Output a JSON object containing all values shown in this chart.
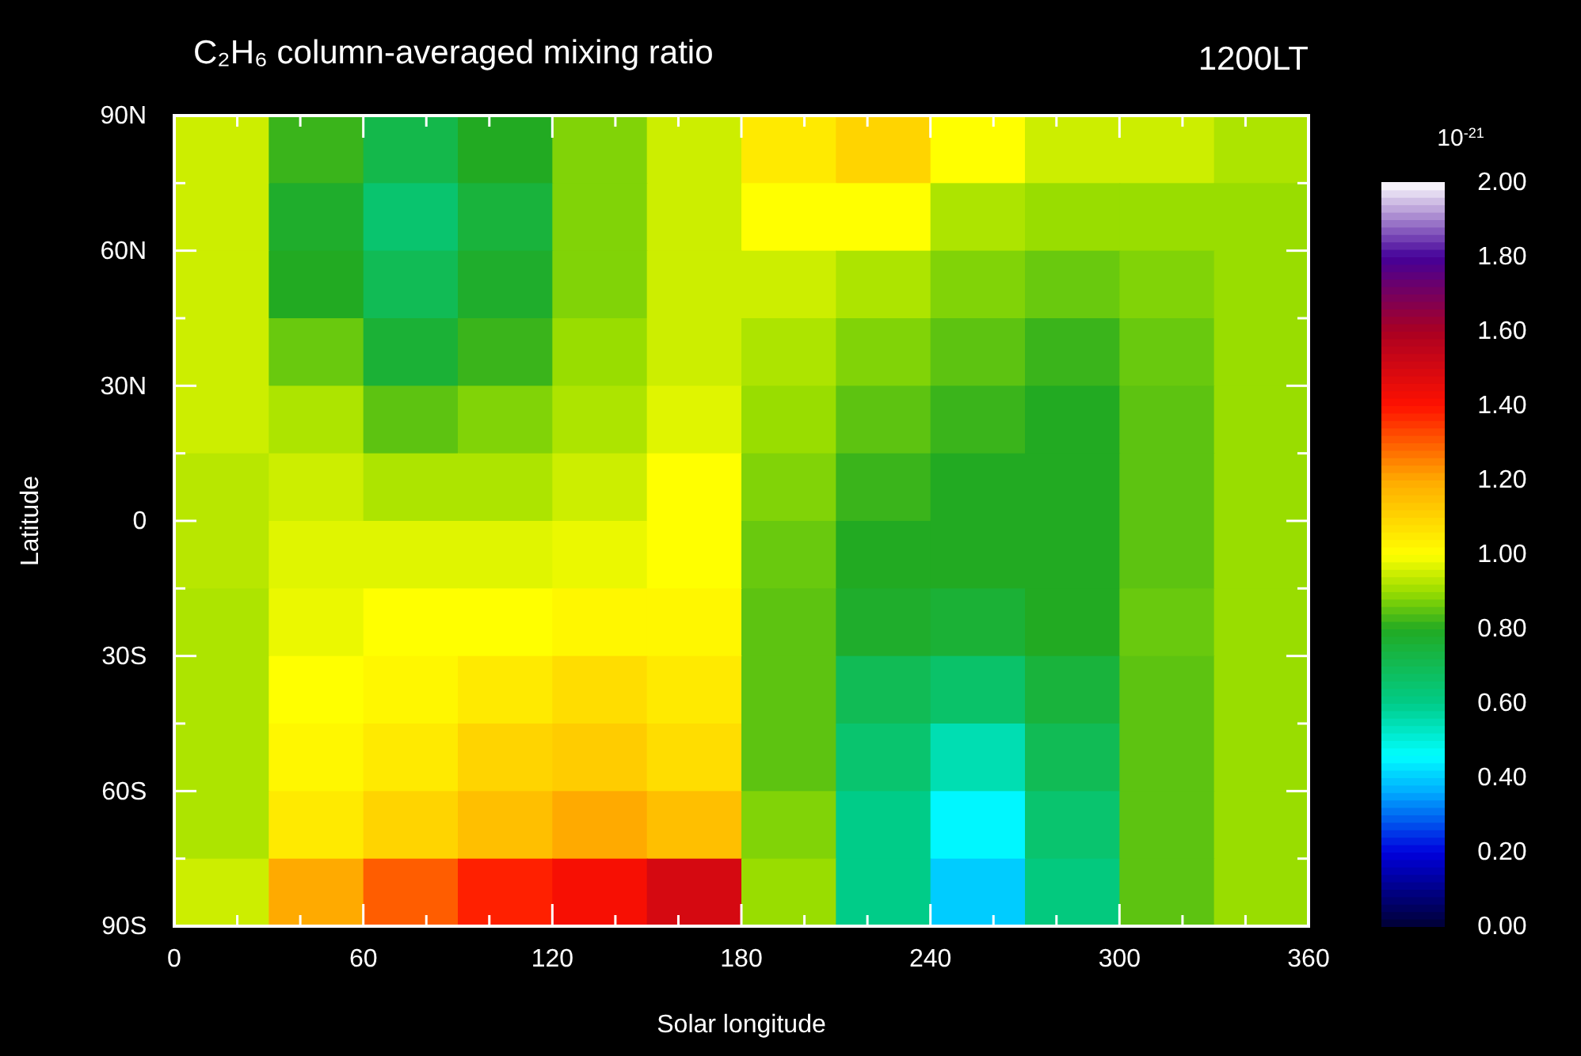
{
  "chart_data": {
    "type": "heatmap",
    "title": "C₂H₆ column-averaged mixing ratio",
    "subtitle": "1200LT",
    "xlabel": "Solar longitude",
    "ylabel": "Latitude",
    "clabel": "10$^{-21}$",
    "xlim": [
      0,
      360
    ],
    "ylim": [
      -90,
      90
    ],
    "xticks": [
      0,
      {
        "value": 20,
        "label": null
      },
      {
        "value": 40,
        "label": null
      },
      60,
      {
        "value": 80,
        "label": null
      },
      {
        "value": 100,
        "label": null
      },
      120,
      {
        "value": 140,
        "label": null
      },
      {
        "value": 160,
        "label": null
      },
      180,
      {
        "value": 200,
        "label": null
      },
      {
        "value": 220,
        "label": null
      },
      240,
      {
        "value": 260,
        "label": null
      },
      {
        "value": 280,
        "label": null
      },
      300,
      {
        "value": 320,
        "label": null
      },
      {
        "value": 340,
        "label": null
      },
      360
    ],
    "yticks": [
      {
        "value": -90,
        "label": "90S"
      },
      {
        "value": -75,
        "label": null
      },
      {
        "value": -60,
        "label": "60S"
      },
      {
        "value": -45,
        "label": null
      },
      {
        "value": -30,
        "label": "30S"
      },
      {
        "value": -15,
        "label": null
      },
      {
        "value": 0,
        "label": "0"
      },
      {
        "value": 15,
        "label": null
      },
      {
        "value": 30,
        "label": "30N"
      },
      {
        "value": 45,
        "label": null
      },
      {
        "value": 60,
        "label": "60N"
      },
      {
        "value": 75,
        "label": null
      },
      {
        "value": 90,
        "label": "90N"
      }
    ],
    "clim": [
      0,
      2
    ],
    "cticks": [
      {
        "value": 0,
        "label": "0.00"
      },
      {
        "value": 0.2,
        "label": "0.20"
      },
      {
        "value": 0.4,
        "label": "0.40"
      },
      {
        "value": 0.6,
        "label": "0.60"
      },
      {
        "value": 0.8,
        "label": "0.80"
      },
      {
        "value": 1,
        "label": "1.00"
      },
      {
        "value": 1.2,
        "label": "1.20"
      },
      {
        "value": 1.4,
        "label": "1.40"
      },
      {
        "value": 1.6,
        "label": "1.60"
      },
      {
        "value": 1.8,
        "label": "1.80"
      },
      {
        "value": 2,
        "label": "2.00"
      }
    ],
    "cells": [
      [
        0.95,
        0.82,
        0.72,
        0.8,
        0.88,
        0.95,
        1.05,
        1.1,
        1.0,
        0.95,
        0.95,
        0.92
      ],
      [
        0.95,
        0.78,
        0.65,
        0.75,
        0.88,
        0.95,
        1.0,
        1.0,
        0.92,
        0.9,
        0.9,
        0.9
      ],
      [
        0.95,
        0.8,
        0.7,
        0.78,
        0.88,
        0.95,
        0.95,
        0.92,
        0.88,
        0.86,
        0.88,
        0.9
      ],
      [
        0.95,
        0.86,
        0.76,
        0.82,
        0.9,
        0.95,
        0.92,
        0.88,
        0.85,
        0.82,
        0.86,
        0.9
      ],
      [
        0.95,
        0.92,
        0.85,
        0.88,
        0.92,
        0.97,
        0.9,
        0.85,
        0.82,
        0.8,
        0.85,
        0.9
      ],
      [
        0.93,
        0.95,
        0.92,
        0.92,
        0.95,
        1.0,
        0.88,
        0.82,
        0.8,
        0.8,
        0.85,
        0.9
      ],
      [
        0.93,
        0.97,
        0.97,
        0.97,
        0.98,
        1.0,
        0.86,
        0.8,
        0.8,
        0.8,
        0.85,
        0.9
      ],
      [
        0.92,
        0.98,
        1.0,
        1.0,
        1.02,
        1.02,
        0.85,
        0.78,
        0.76,
        0.8,
        0.86,
        0.9
      ],
      [
        0.92,
        1.0,
        1.02,
        1.05,
        1.08,
        1.05,
        0.85,
        0.7,
        0.66,
        0.75,
        0.85,
        0.9
      ],
      [
        0.92,
        1.02,
        1.05,
        1.1,
        1.12,
        1.08,
        0.85,
        0.65,
        0.55,
        0.7,
        0.85,
        0.9
      ],
      [
        0.92,
        1.05,
        1.1,
        1.15,
        1.2,
        1.15,
        0.88,
        0.6,
        0.45,
        0.65,
        0.85,
        0.9
      ],
      [
        0.95,
        1.2,
        1.3,
        1.38,
        1.42,
        1.5,
        0.9,
        0.6,
        0.4,
        0.62,
        0.85,
        0.9
      ]
    ]
  }
}
